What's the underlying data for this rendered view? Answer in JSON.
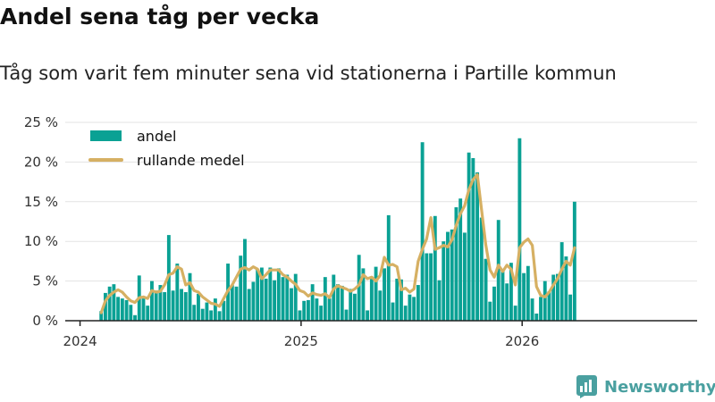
{
  "header": {
    "title": "Andel sena tåg per vecka",
    "subtitle": "Tåg som varit fem minuter sena vid stationerna i Partille kommun"
  },
  "logo": {
    "text": "Newsworthy",
    "icon": "chart-bars-icon"
  },
  "colors": {
    "bars": "#0aa194",
    "line": "#d6b063",
    "grid": "#e3e3e3",
    "axis": "#222222",
    "brand": "#4aa0a0"
  },
  "chart_data": {
    "type": "bar",
    "title": "Andel sena tåg per vecka",
    "xlabel": "",
    "ylabel": "",
    "x_unit": "weeks since 2024-01-01",
    "xlim": [
      -3.5,
      146
    ],
    "ylim": [
      0,
      25
    ],
    "y_ticks": [
      0,
      5,
      10,
      15,
      20,
      25
    ],
    "y_tick_labels": [
      "0 %",
      "5 %",
      "10 %",
      "15 %",
      "20 %",
      "25 %"
    ],
    "x_ticks": [
      0,
      52.3,
      104.6
    ],
    "x_tick_labels": [
      "2024",
      "2025",
      "2026"
    ],
    "legend": {
      "position": "top-left",
      "entries": [
        "andel",
        "rullande medel"
      ]
    },
    "series": [
      {
        "name": "andel",
        "type": "bar",
        "start_week": 5,
        "values": [
          1.2,
          3.5,
          4.3,
          4.6,
          3.0,
          2.8,
          2.6,
          2.0,
          0.7,
          5.7,
          2.8,
          1.9,
          5.0,
          3.8,
          4.5,
          3.6,
          10.8,
          3.8,
          7.2,
          4.0,
          3.6,
          6.0,
          2.0,
          3.4,
          1.5,
          2.3,
          1.3,
          2.8,
          1.2,
          2.5,
          7.2,
          4.5,
          4.3,
          8.2,
          10.3,
          4.0,
          4.9,
          6.5,
          6.7,
          5.3,
          6.7,
          5.1,
          6.6,
          5.5,
          5.8,
          4.1,
          5.9,
          1.3,
          2.5,
          2.6,
          4.6,
          2.8,
          1.9,
          5.5,
          2.8,
          5.8,
          4.6,
          4.4,
          1.4,
          4.0,
          3.4,
          8.3,
          6.6,
          1.3,
          5.5,
          6.8,
          3.8,
          6.6,
          13.3,
          2.3,
          5.3,
          5.2,
          1.9,
          3.3,
          3.0,
          4.5,
          22.5,
          8.5,
          8.5,
          13.2,
          5.1,
          10.0,
          11.2,
          11.5,
          14.3,
          15.4,
          11.1,
          21.2,
          20.5,
          18.7,
          13.0,
          7.8,
          2.4,
          4.3,
          12.7,
          6.4,
          4.7,
          7.3,
          1.9,
          23.0,
          6.0,
          6.9,
          2.8,
          0.9,
          3.0,
          5.0,
          3.7,
          5.8,
          5.9,
          9.9,
          8.1,
          3.3,
          15.0
        ]
      },
      {
        "name": "rullande medel",
        "type": "line",
        "start_week": 5,
        "values": [
          1.0,
          2.5,
          3.2,
          3.6,
          3.9,
          3.6,
          3.0,
          2.5,
          2.3,
          2.9,
          3.0,
          2.8,
          3.8,
          3.6,
          3.7,
          4.5,
          5.8,
          6.0,
          6.8,
          6.5,
          4.5,
          4.8,
          3.8,
          3.6,
          3.0,
          2.6,
          2.2,
          2.1,
          1.8,
          2.8,
          3.8,
          4.5,
          5.5,
          6.5,
          6.7,
          6.4,
          6.8,
          6.5,
          5.3,
          5.8,
          6.4,
          6.4,
          6.4,
          5.8,
          5.5,
          5.0,
          4.6,
          3.8,
          3.6,
          3.1,
          3.5,
          3.3,
          3.2,
          3.4,
          2.9,
          4.0,
          4.4,
          4.2,
          4.0,
          3.7,
          4.0,
          4.5,
          5.8,
          5.3,
          5.5,
          5.0,
          5.7,
          8.0,
          7.0,
          7.1,
          6.8,
          3.9,
          4.1,
          3.6,
          4.0,
          7.5,
          9.0,
          10.3,
          13.0,
          9.0,
          9.2,
          9.5,
          9.3,
          10.2,
          12.0,
          13.5,
          14.5,
          16.5,
          17.8,
          18.4,
          14.0,
          9.6,
          6.4,
          5.5,
          7.0,
          6.2,
          7.0,
          6.5,
          4.5,
          9.2,
          9.9,
          10.3,
          9.5,
          4.3,
          3.2,
          3.0,
          3.6,
          4.5,
          5.3,
          6.5,
          7.5,
          7.0,
          9.2
        ]
      }
    ]
  }
}
